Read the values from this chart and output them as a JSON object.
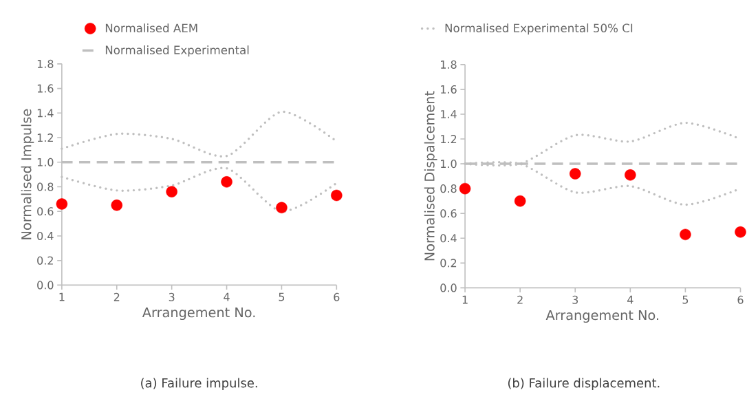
{
  "chart_data": [
    {
      "type": "line",
      "xlabel": "Arrangement No.",
      "ylabel": "Normalised Impulse",
      "annotations": [
        "(a) Failure impulse."
      ],
      "xlim": [
        1,
        6
      ],
      "xticks": [
        1,
        2,
        3,
        4,
        5,
        6
      ],
      "ylim": [
        0,
        1.8
      ],
      "yticks": [
        {
          "value": 0,
          "label": "0.0"
        },
        {
          "value": 0.2,
          "label": "0.2"
        },
        {
          "value": 0.4,
          "label": "0.4"
        },
        {
          "value": 0.6,
          "label": "0.6"
        },
        {
          "value": 0.8,
          "label": "0.8"
        },
        {
          "value": 1,
          "label": "1.0"
        },
        {
          "value": 1.2,
          "label": "1.2"
        },
        {
          "value": 1.4,
          "label": "1.4"
        },
        {
          "value": 1.6,
          "label": "1.6"
        },
        {
          "value": 1.8,
          "label": "1.8"
        }
      ],
      "x": [
        1,
        2,
        3,
        4,
        5,
        6
      ],
      "legend": "top",
      "grid": false,
      "series": [
        {
          "name": "Normalised AEM",
          "type": "scatter",
          "marker": "circle",
          "color": "#ff0000",
          "values": [
            0.66,
            0.65,
            0.76,
            0.84,
            0.63,
            0.73
          ]
        },
        {
          "name": "Normalised Experimental",
          "line_style": "dashed",
          "marker": "none",
          "color": "#bfbfbf",
          "values": [
            1,
            1,
            1,
            1,
            1,
            1
          ]
        },
        {
          "name": "Normalised Experimental 50% CI",
          "line_style": "dotted",
          "marker": "none",
          "color": "#bfbfbf",
          "values": [
            1.11,
            1.23,
            1.19,
            1.05,
            1.41,
            1.17
          ]
        },
        {
          "line_style": "dotted",
          "marker": "none",
          "color": "#bfbfbf",
          "values": [
            0.88,
            0.77,
            0.81,
            0.95,
            0.6,
            0.83
          ]
        }
      ]
    },
    {
      "type": "line",
      "xlabel": "Arrangement No.",
      "ylabel": "Normalised Dispalcement",
      "annotations": [
        "(b) Failure displacement."
      ],
      "xlim": [
        1,
        6
      ],
      "xticks": [
        1,
        2,
        3,
        4,
        5,
        6
      ],
      "ylim": [
        0,
        1.8
      ],
      "yticks": [
        {
          "value": 0,
          "label": "0.0"
        },
        {
          "value": 0.2,
          "label": "0.2"
        },
        {
          "value": 0.4,
          "label": "0.4"
        },
        {
          "value": 0.6,
          "label": "0.6"
        },
        {
          "value": 0.8,
          "label": "0.8"
        },
        {
          "value": 1,
          "label": "1.0"
        },
        {
          "value": 1.2,
          "label": "1.2"
        },
        {
          "value": 1.4,
          "label": "1.4"
        },
        {
          "value": 1.6,
          "label": "1.6"
        },
        {
          "value": 1.8,
          "label": "1.8"
        }
      ],
      "x": [
        1,
        2,
        3,
        4,
        5,
        6
      ],
      "grid": false,
      "series": [
        {
          "type": "scatter",
          "marker": "circle",
          "color": "#ff0000",
          "values": [
            0.8,
            0.7,
            0.92,
            0.91,
            0.43,
            0.45
          ]
        },
        {
          "line_style": "dashed",
          "marker": "none",
          "color": "#bfbfbf",
          "values": [
            1,
            1,
            1,
            1,
            1,
            1
          ]
        },
        {
          "line_style": "dotted",
          "marker": "none",
          "color": "#bfbfbf",
          "values": [
            1.0,
            1.0,
            1.23,
            1.18,
            1.33,
            1.2
          ]
        },
        {
          "line_style": "dotted",
          "marker": "none",
          "color": "#bfbfbf",
          "values": [
            1.0,
            1.0,
            0.77,
            0.82,
            0.67,
            0.8
          ]
        }
      ]
    }
  ]
}
